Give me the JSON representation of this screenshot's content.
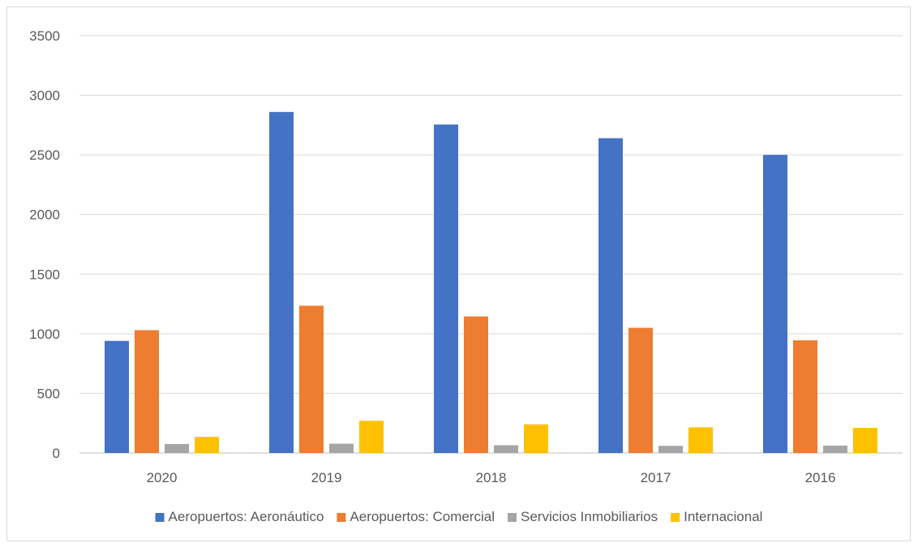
{
  "chart_data": {
    "type": "bar",
    "categories": [
      "2020",
      "2019",
      "2018",
      "2017",
      "2016"
    ],
    "series": [
      {
        "name": "Aeropuertos: Aeronáutico",
        "color": "#4472c4",
        "values": [
          940,
          2860,
          2755,
          2640,
          2500
        ]
      },
      {
        "name": "Aeropuertos: Comercial",
        "color": "#ed7d31",
        "values": [
          1030,
          1235,
          1145,
          1050,
          945
        ]
      },
      {
        "name": "Servicios Inmobiliarios",
        "color": "#a5a5a5",
        "values": [
          75,
          78,
          65,
          60,
          62
        ]
      },
      {
        "name": "Internacional",
        "color": "#ffc000",
        "values": [
          135,
          270,
          240,
          215,
          210
        ]
      }
    ],
    "ylim": [
      0,
      3500
    ],
    "yticks": [
      0,
      500,
      1000,
      1500,
      2000,
      2500,
      3000,
      3500
    ],
    "grid": true,
    "legend": "bottom",
    "title": "",
    "xlabel": "",
    "ylabel": ""
  }
}
